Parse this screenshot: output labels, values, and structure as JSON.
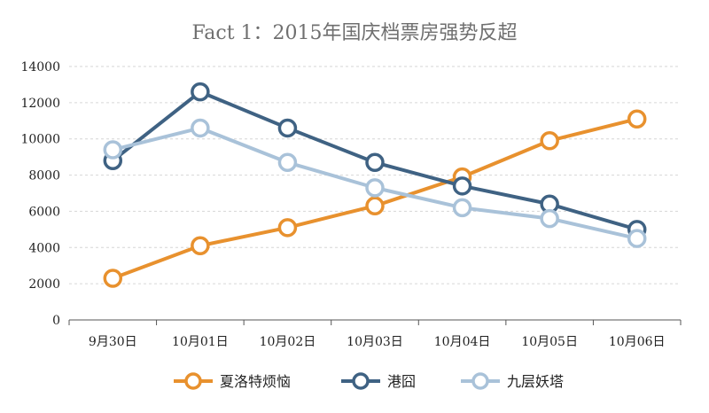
{
  "chart_data": {
    "type": "line",
    "title": "Fact 1：2015年国庆档票房强势反超",
    "xlabel": "",
    "ylabel": "",
    "ylim": [
      0,
      14000
    ],
    "yticks": [
      0,
      2000,
      4000,
      6000,
      8000,
      10000,
      12000,
      14000
    ],
    "grid": true,
    "legend": "bottom",
    "categories": [
      "9月30日",
      "10月01日",
      "10月02日",
      "10月03日",
      "10月04日",
      "10月05日",
      "10月06日"
    ],
    "series": [
      {
        "name": "夏洛特烦恼",
        "color": "#E8912E",
        "values": [
          2300,
          4100,
          5100,
          6300,
          7900,
          9900,
          11100
        ]
      },
      {
        "name": "港囧",
        "color": "#3F6283",
        "values": [
          8800,
          12600,
          10600,
          8700,
          7400,
          6400,
          5000
        ]
      },
      {
        "name": "九层妖塔",
        "color": "#A9C2D9",
        "values": [
          9400,
          10600,
          8700,
          7300,
          6200,
          5600,
          4500
        ]
      }
    ]
  }
}
